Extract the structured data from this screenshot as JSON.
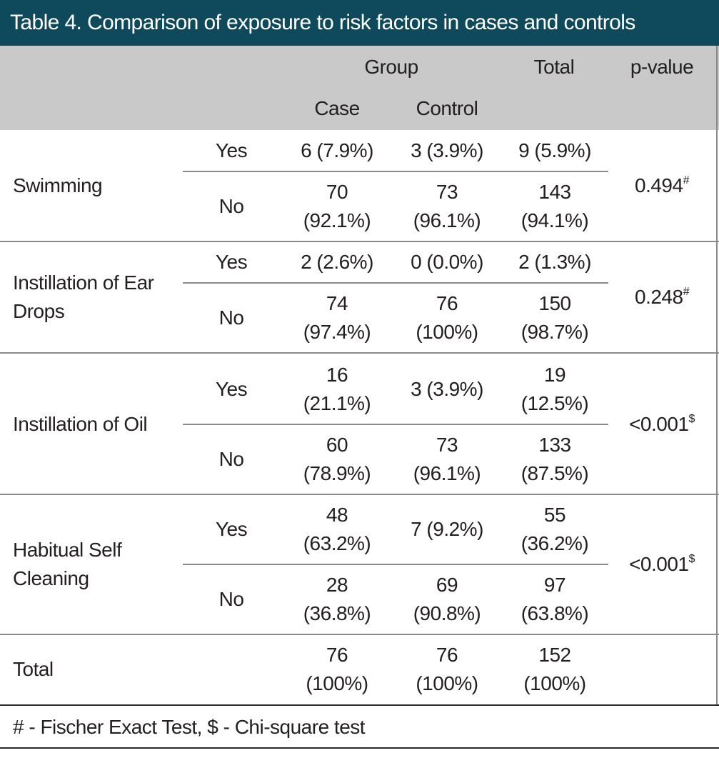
{
  "title": "Table 4. Comparison of exposure to risk factors in cases and controls",
  "header": {
    "group": "Group",
    "total": "Total",
    "pvalue": "p-value",
    "case": "Case",
    "control": "Control"
  },
  "rows": [
    {
      "factor": [
        "Swimming"
      ],
      "pvalue": "0.494",
      "pvalue_mark": "#",
      "yes": {
        "label": "Yes",
        "case": [
          "6 (7.9%)"
        ],
        "control": [
          "3 (3.9%)"
        ],
        "total": [
          "9 (5.9%)"
        ]
      },
      "no": {
        "label": "No",
        "case": [
          "70",
          "(92.1%)"
        ],
        "control": [
          "73",
          "(96.1%)"
        ],
        "total": [
          "143",
          "(94.1%)"
        ]
      }
    },
    {
      "factor": [
        "Instillation of Ear",
        "Drops"
      ],
      "pvalue": "0.248",
      "pvalue_mark": "#",
      "yes": {
        "label": "Yes",
        "case": [
          "2 (2.6%)"
        ],
        "control": [
          "0 (0.0%)"
        ],
        "total": [
          "2 (1.3%)"
        ]
      },
      "no": {
        "label": "No",
        "case": [
          "74",
          "(97.4%)"
        ],
        "control": [
          "76",
          "(100%)"
        ],
        "total": [
          "150",
          "(98.7%)"
        ]
      }
    },
    {
      "factor": [
        "Instillation of Oil"
      ],
      "pvalue": "<0.001",
      "pvalue_mark": "$",
      "yes": {
        "label": "Yes",
        "case": [
          "16",
          "(21.1%)"
        ],
        "control": [
          "3 (3.9%)"
        ],
        "total": [
          "19",
          "(12.5%)"
        ]
      },
      "no": {
        "label": "No",
        "case": [
          "60",
          "(78.9%)"
        ],
        "control": [
          "73",
          "(96.1%)"
        ],
        "total": [
          "133",
          "(87.5%)"
        ]
      }
    },
    {
      "factor": [
        "Habitual Self",
        "Cleaning"
      ],
      "pvalue": "<0.001",
      "pvalue_mark": "$",
      "yes": {
        "label": "Yes",
        "case": [
          "48",
          "(63.2%)"
        ],
        "control": [
          "7 (9.2%)"
        ],
        "total": [
          "55",
          "(36.2%)"
        ]
      },
      "no": {
        "label": "No",
        "case": [
          "28",
          "(36.8%)"
        ],
        "control": [
          "69",
          "(90.8%)"
        ],
        "total": [
          "97",
          "(63.8%)"
        ]
      }
    }
  ],
  "total_row": {
    "label": "Total",
    "case": [
      "76",
      "(100%)"
    ],
    "control": [
      "76",
      "(100%)"
    ],
    "total": [
      "152",
      "(100%)"
    ]
  },
  "footnote": "# - Fischer Exact Test,   $ - Chi-square test",
  "colors": {
    "title_bg": "#0f4a5c",
    "header_bg": "#c9c9ca"
  }
}
